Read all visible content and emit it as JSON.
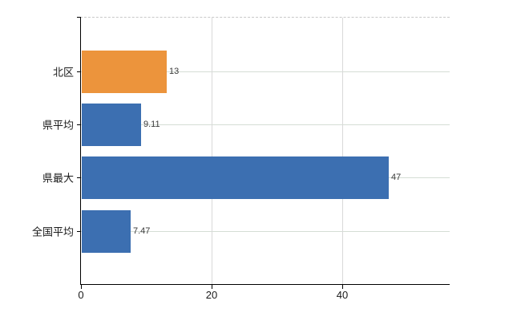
{
  "chart_data": {
    "type": "bar",
    "orientation": "horizontal",
    "title": "",
    "categories": [
      "北区",
      "県平均",
      "県最大",
      "全国平均"
    ],
    "values": [
      13,
      9.11,
      47,
      7.47
    ],
    "value_labels": [
      "13",
      "9.11",
      "47",
      "7.47"
    ],
    "bar_colors": [
      "#EC943C",
      "#3C6FB1",
      "#3C6FB1",
      "#3C6FB1"
    ],
    "xlabel": "",
    "ylabel": "",
    "xlim": [
      0,
      56.4
    ],
    "x_ticks": [
      0,
      20,
      40
    ],
    "x_tick_labels": [
      "0",
      "20",
      "40"
    ],
    "grid": true,
    "legend": false
  },
  "colors": {
    "bar_orange": "#EC943C",
    "bar_blue": "#3C6FB1",
    "axis": "#000000",
    "grid_horizontal": "#d5ddd5",
    "grid_vertical": "#d9d9d9",
    "plot_top_border": "#c9c9c9",
    "category_label": "#1a1a1a",
    "value_label": "#3a3a3a",
    "tick_label": "#1a1a1a",
    "background": "#ffffff"
  }
}
